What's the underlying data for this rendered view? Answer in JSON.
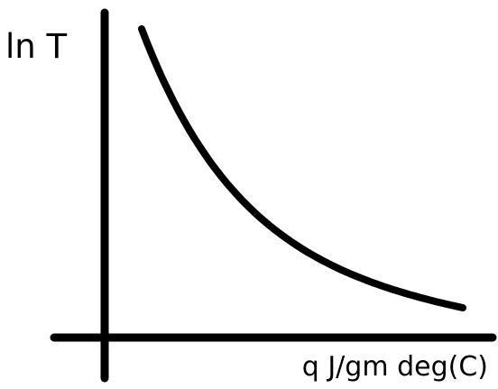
{
  "chart_data": {
    "type": "line",
    "title": "",
    "xlabel": "q J/gm deg(C)",
    "ylabel": "ln T",
    "grid": false,
    "series": [
      {
        "shape": "decreasing-convex",
        "color": "#000000"
      }
    ]
  }
}
